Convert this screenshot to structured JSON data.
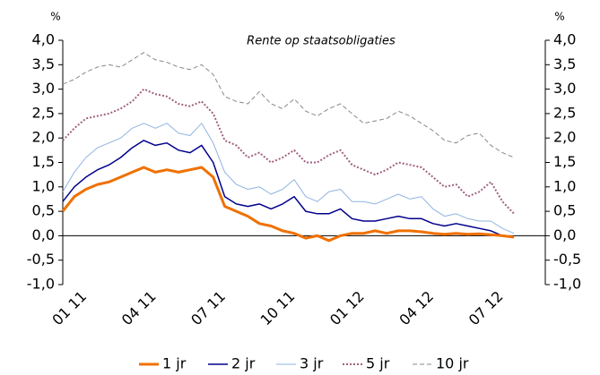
{
  "chart_data": {
    "type": "line",
    "title": "Rente op staatsobligaties",
    "y_unit": "%",
    "y2_unit": "%",
    "categories": [
      "01 11",
      null,
      null,
      null,
      null,
      null,
      "04 11",
      null,
      null,
      null,
      null,
      null,
      "07 11",
      null,
      null,
      null,
      null,
      null,
      "10 11",
      null,
      null,
      null,
      null,
      null,
      "01 12",
      null,
      null,
      null,
      null,
      null,
      "04 12",
      null,
      null,
      null,
      null,
      null,
      "07 12",
      null,
      null,
      null
    ],
    "ylim": [
      -1.0,
      4.0
    ],
    "yticks": [
      {
        "value": -1.0,
        "label": "-1,0"
      },
      {
        "value": -0.5,
        "label": "-0,5"
      },
      {
        "value": 0.0,
        "label": "0,0"
      },
      {
        "value": 0.5,
        "label": "0,5"
      },
      {
        "value": 1.0,
        "label": "1,0"
      },
      {
        "value": 1.5,
        "label": "1,5"
      },
      {
        "value": 2.0,
        "label": "2,0"
      },
      {
        "value": 2.5,
        "label": "2,5"
      },
      {
        "value": 3.0,
        "label": "3,0"
      },
      {
        "value": 3.5,
        "label": "3,5"
      },
      {
        "value": 4.0,
        "label": "4,0"
      }
    ],
    "y2lim": [
      -1.0,
      4.0
    ],
    "y2ticks": [
      {
        "value": -1.0,
        "label": "-1,0"
      },
      {
        "value": -0.5,
        "label": "-0,5"
      },
      {
        "value": 0.0,
        "label": "0,0"
      },
      {
        "value": 0.5,
        "label": "0,5"
      },
      {
        "value": 1.0,
        "label": "1,0"
      },
      {
        "value": 1.5,
        "label": "1,5"
      },
      {
        "value": 2.0,
        "label": "2,0"
      },
      {
        "value": 2.5,
        "label": "2,5"
      },
      {
        "value": 3.0,
        "label": "3,0"
      },
      {
        "value": 3.5,
        "label": "3,5"
      },
      {
        "value": 4.0,
        "label": "4,0"
      }
    ],
    "legend": "bottom",
    "series": [
      {
        "name": "1 jr",
        "color": "#f07000",
        "style": "solid",
        "width": 3,
        "values": [
          0.5,
          0.8,
          0.95,
          1.05,
          1.1,
          1.2,
          1.3,
          1.4,
          1.3,
          1.35,
          1.3,
          1.35,
          1.4,
          1.2,
          0.6,
          0.5,
          0.4,
          0.25,
          0.2,
          0.1,
          0.05,
          -0.05,
          0.0,
          -0.1,
          0.0,
          0.05,
          0.05,
          0.1,
          0.05,
          0.1,
          0.1,
          0.08,
          0.05,
          0.03,
          0.05,
          0.03,
          0.04,
          0.02,
          0.0,
          -0.03
        ]
      },
      {
        "name": "2 jr",
        "color": "#00008b",
        "style": "solid",
        "width": 1.5,
        "values": [
          0.7,
          1.0,
          1.2,
          1.35,
          1.45,
          1.6,
          1.8,
          1.95,
          1.85,
          1.9,
          1.75,
          1.7,
          1.85,
          1.5,
          0.8,
          0.65,
          0.6,
          0.65,
          0.55,
          0.65,
          0.8,
          0.5,
          0.45,
          0.45,
          0.55,
          0.35,
          0.3,
          0.3,
          0.35,
          0.4,
          0.35,
          0.35,
          0.25,
          0.2,
          0.25,
          0.2,
          0.15,
          0.1,
          0.0,
          -0.02
        ]
      },
      {
        "name": "3 jr",
        "color": "#8fb4e0",
        "style": "solid",
        "width": 1,
        "values": [
          0.9,
          1.3,
          1.6,
          1.8,
          1.9,
          2.0,
          2.2,
          2.3,
          2.2,
          2.3,
          2.1,
          2.05,
          2.3,
          1.9,
          1.3,
          1.05,
          0.95,
          1.0,
          0.85,
          0.95,
          1.15,
          0.8,
          0.7,
          0.9,
          0.95,
          0.7,
          0.7,
          0.65,
          0.75,
          0.85,
          0.75,
          0.8,
          0.55,
          0.4,
          0.45,
          0.35,
          0.3,
          0.3,
          0.15,
          0.05
        ]
      },
      {
        "name": "5 jr",
        "color": "#a0607f",
        "style": "dotted",
        "width": 2,
        "values": [
          1.95,
          2.2,
          2.4,
          2.45,
          2.5,
          2.6,
          2.75,
          3.0,
          2.9,
          2.85,
          2.7,
          2.65,
          2.75,
          2.5,
          1.95,
          1.85,
          1.6,
          1.7,
          1.5,
          1.6,
          1.75,
          1.5,
          1.5,
          1.65,
          1.75,
          1.45,
          1.35,
          1.25,
          1.35,
          1.5,
          1.45,
          1.4,
          1.2,
          1.0,
          1.05,
          0.8,
          0.9,
          1.1,
          0.7,
          0.45
        ]
      },
      {
        "name": "10 jr",
        "color": "#888888",
        "style": "dashed",
        "width": 1,
        "values": [
          3.1,
          3.2,
          3.35,
          3.45,
          3.5,
          3.45,
          3.6,
          3.75,
          3.6,
          3.55,
          3.45,
          3.4,
          3.5,
          3.3,
          2.85,
          2.75,
          2.7,
          2.95,
          2.7,
          2.6,
          2.8,
          2.55,
          2.45,
          2.6,
          2.7,
          2.5,
          2.3,
          2.35,
          2.4,
          2.55,
          2.45,
          2.3,
          2.15,
          1.95,
          1.9,
          2.05,
          2.1,
          1.85,
          1.7,
          1.6
        ]
      }
    ]
  }
}
